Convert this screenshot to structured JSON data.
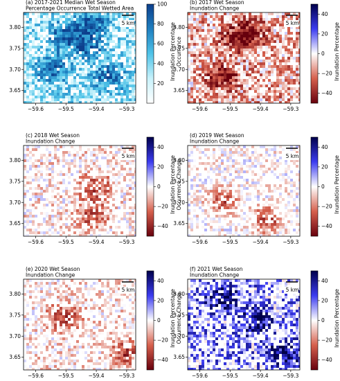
{
  "chart_data": [
    {
      "type": "heatmap",
      "panel": "a",
      "title_lines": [
        "(a) 2017-2021 Median Wet Season",
        "Percentage Occurrence  Total Wetted Area"
      ],
      "scale_bar_label": "5 km",
      "x_ticks": [
        -59.6,
        -59.5,
        -59.4,
        -59.3
      ],
      "x_tick_labels": [
        "−59.6",
        "−59.5",
        "−59.4",
        "−59.3"
      ],
      "y_ticks": [
        3.8,
        3.75,
        3.7,
        3.65
      ],
      "y_tick_labels": [
        "3.80",
        "3.75",
        "3.70",
        "3.65"
      ],
      "xlim": [
        -59.64,
        -59.27
      ],
      "ylim": [
        3.62,
        3.835
      ],
      "colorbar": {
        "label_lines": [
          "Inundation Percentage",
          "Occurrence"
        ],
        "cmap": "white-cyan-blue",
        "colors": [
          "#ffffff",
          "#c8f2fb",
          "#4fc3e8",
          "#1f7fc0",
          "#0d3f8c"
        ],
        "range": [
          0,
          100
        ],
        "ticks": [
          100,
          80,
          60,
          40,
          20
        ],
        "tick_labels": [
          "100",
          "80",
          "60",
          "40",
          "20"
        ]
      }
    },
    {
      "type": "heatmap",
      "panel": "b",
      "title_lines": [
        "(b) 2017 Wet Season",
        "Inundation Change"
      ],
      "scale_bar_label": "5 km",
      "x_ticks": [
        -59.6,
        -59.5,
        -59.4,
        -59.3
      ],
      "x_tick_labels": [
        "−59.6",
        "−59.5",
        "−59.4",
        "−59.3"
      ],
      "y_ticks": [
        3.8,
        3.75,
        3.7,
        3.65
      ],
      "y_tick_labels": [
        "3.80",
        "3.75",
        "3.70",
        "3.65"
      ],
      "xlim": [
        -59.64,
        -59.27
      ],
      "ylim": [
        3.62,
        3.835
      ],
      "colorbar": {
        "label_lines": [
          "Inundation Percentage",
          "Occurrence Change"
        ],
        "cmap": "seismic_r",
        "colors": [
          "#67000d",
          "#d6604d",
          "#ffffff",
          "#3c3cf0",
          "#00004a"
        ],
        "range": [
          -50,
          50
        ],
        "ticks": [
          40,
          20,
          0,
          -20,
          -40
        ],
        "tick_labels": [
          "40",
          "20",
          "0",
          "−20",
          "−40"
        ]
      }
    },
    {
      "type": "heatmap",
      "panel": "c",
      "title_lines": [
        "(c) 2018 Wet Season",
        "Inundation Change"
      ],
      "scale_bar_label": "5 km",
      "x_ticks": [
        -59.6,
        -59.5,
        -59.4,
        -59.3
      ],
      "x_tick_labels": [
        "−59.6",
        "−59.5",
        "−59.4",
        "−59.3"
      ],
      "y_ticks": [
        3.8,
        3.75,
        3.7,
        3.65
      ],
      "y_tick_labels": [
        "3.80",
        "3.75",
        "3.70",
        "3.65"
      ],
      "xlim": [
        -59.64,
        -59.27
      ],
      "ylim": [
        3.62,
        3.835
      ],
      "colorbar": {
        "label_lines": [
          "Inundation Percentage",
          "Occurrence Change"
        ],
        "cmap": "seismic_r",
        "colors": [
          "#67000d",
          "#d6604d",
          "#ffffff",
          "#3c3cf0",
          "#00004a"
        ],
        "range": [
          -50,
          50
        ],
        "ticks": [
          40,
          20,
          0,
          -20,
          -40
        ],
        "tick_labels": [
          "40",
          "20",
          "0",
          "−20",
          "−40"
        ]
      }
    },
    {
      "type": "heatmap",
      "panel": "d",
      "title_lines": [
        "(d) 2019 Wet Season",
        "Inundation Change"
      ],
      "scale_bar_label": "5 km",
      "x_ticks": [
        -59.6,
        -59.5,
        -59.4,
        -59.3
      ],
      "x_tick_labels": [
        "−59.6",
        "−59.5",
        "−59.4",
        "−59.3"
      ],
      "y_ticks": [
        3.8,
        3.75,
        3.7,
        3.65
      ],
      "y_tick_labels": [
        "3.80",
        "3.75",
        "3.70",
        "3.65"
      ],
      "xlim": [
        -59.64,
        -59.27
      ],
      "ylim": [
        3.62,
        3.835
      ],
      "colorbar": {
        "label_lines": [
          "Inundation Percentage",
          "Occurrence Change"
        ],
        "cmap": "seismic_r",
        "colors": [
          "#67000d",
          "#d6604d",
          "#ffffff",
          "#3c3cf0",
          "#00004a"
        ],
        "range": [
          -50,
          50
        ],
        "ticks": [
          40,
          20,
          0,
          -20,
          -40
        ],
        "tick_labels": [
          "40",
          "20",
          "0",
          "−20",
          "−40"
        ]
      }
    },
    {
      "type": "heatmap",
      "panel": "e",
      "title_lines": [
        "(e) 2020 Wet Season",
        "Inundation Change"
      ],
      "scale_bar_label": "5 km",
      "x_ticks": [
        -59.6,
        -59.5,
        -59.4,
        -59.3
      ],
      "x_tick_labels": [
        "−59.6",
        "−59.5",
        "−59.4",
        "−59.3"
      ],
      "y_ticks": [
        3.8,
        3.75,
        3.7,
        3.65
      ],
      "y_tick_labels": [
        "3.80",
        "3.75",
        "3.70",
        "3.65"
      ],
      "xlim": [
        -59.64,
        -59.27
      ],
      "ylim": [
        3.62,
        3.835
      ],
      "colorbar": {
        "label_lines": [
          "Inundation Percentage",
          "Occurrence Change"
        ],
        "cmap": "seismic_r",
        "colors": [
          "#67000d",
          "#d6604d",
          "#ffffff",
          "#3c3cf0",
          "#00004a"
        ],
        "range": [
          -50,
          50
        ],
        "ticks": [
          40,
          20,
          0,
          -20,
          -40
        ],
        "tick_labels": [
          "40",
          "20",
          "0",
          "−20",
          "−40"
        ]
      }
    },
    {
      "type": "heatmap",
      "panel": "f",
      "title_lines": [
        "(f) 2021 Wet Season",
        "Inundation Change"
      ],
      "scale_bar_label": "5 km",
      "x_ticks": [
        -59.6,
        -59.5,
        -59.4,
        -59.3
      ],
      "x_tick_labels": [
        "−59.6",
        "−59.5",
        "−59.4",
        "−59.3"
      ],
      "y_ticks": [
        3.8,
        3.75,
        3.7,
        3.65
      ],
      "y_tick_labels": [
        "3.80",
        "3.75",
        "3.70",
        "3.65"
      ],
      "xlim": [
        -59.64,
        -59.27
      ],
      "ylim": [
        3.62,
        3.835
      ],
      "colorbar": {
        "label_lines": [
          "Inundation Percentage",
          "Occurrence Change"
        ],
        "cmap": "seismic_r",
        "colors": [
          "#67000d",
          "#d6604d",
          "#ffffff",
          "#3c3cf0",
          "#00004a"
        ],
        "range": [
          -50,
          50
        ],
        "ticks": [
          40,
          20,
          0,
          -20,
          -40
        ],
        "tick_labels": [
          "40",
          "20",
          "0",
          "−20",
          "−40"
        ]
      }
    }
  ]
}
